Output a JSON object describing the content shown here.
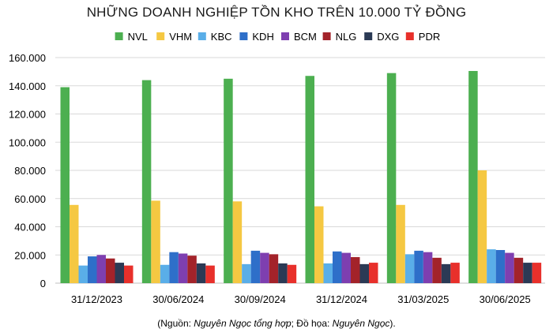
{
  "chart_data": {
    "type": "bar",
    "title": "NHỮNG DOANH NGHIỆP TỒN KHO TRÊN 10.000 TỶ ĐỒNG",
    "categories": [
      "31/12/2023",
      "30/06/2024",
      "30/09/2024",
      "31/12/2024",
      "31/03/2025",
      "30/06/2025"
    ],
    "ylim": [
      0,
      160000
    ],
    "yticks": [
      "0",
      "20.000",
      "40.000",
      "60.000",
      "80.000",
      "100.000",
      "120.000",
      "140.000",
      "160.000"
    ],
    "grid": true,
    "legend_position": "top",
    "series": [
      {
        "name": "NVL",
        "color": "#4caf50",
        "values": [
          139000,
          144000,
          145000,
          147000,
          149000,
          150500
        ]
      },
      {
        "name": "VHM",
        "color": "#f5c842",
        "values": [
          55500,
          58500,
          58000,
          54500,
          55500,
          80000
        ]
      },
      {
        "name": "KBC",
        "color": "#5aaee8",
        "values": [
          12500,
          13000,
          13500,
          14000,
          20500,
          24000
        ]
      },
      {
        "name": "KDH",
        "color": "#2e6fc9",
        "values": [
          19000,
          22000,
          23000,
          22500,
          23000,
          23500
        ]
      },
      {
        "name": "BCM",
        "color": "#7e3fb0",
        "values": [
          20000,
          21000,
          21500,
          21500,
          22000,
          21500
        ]
      },
      {
        "name": "NLG",
        "color": "#a3232a",
        "values": [
          17500,
          19500,
          20500,
          18500,
          18000,
          18000
        ]
      },
      {
        "name": "DXG",
        "color": "#2b3a55",
        "values": [
          14500,
          14000,
          14000,
          13500,
          13500,
          14500
        ]
      },
      {
        "name": "PDR",
        "color": "#e8302b",
        "values": [
          12500,
          12500,
          13000,
          14500,
          14500,
          14500
        ]
      }
    ]
  },
  "source": {
    "open": "(Nguồn: ",
    "author": "Nguyên Ngọc tổng hợp",
    "mid": "; Đồ họa: ",
    "designer": "Nguyên Ngọc",
    "close": ")."
  }
}
